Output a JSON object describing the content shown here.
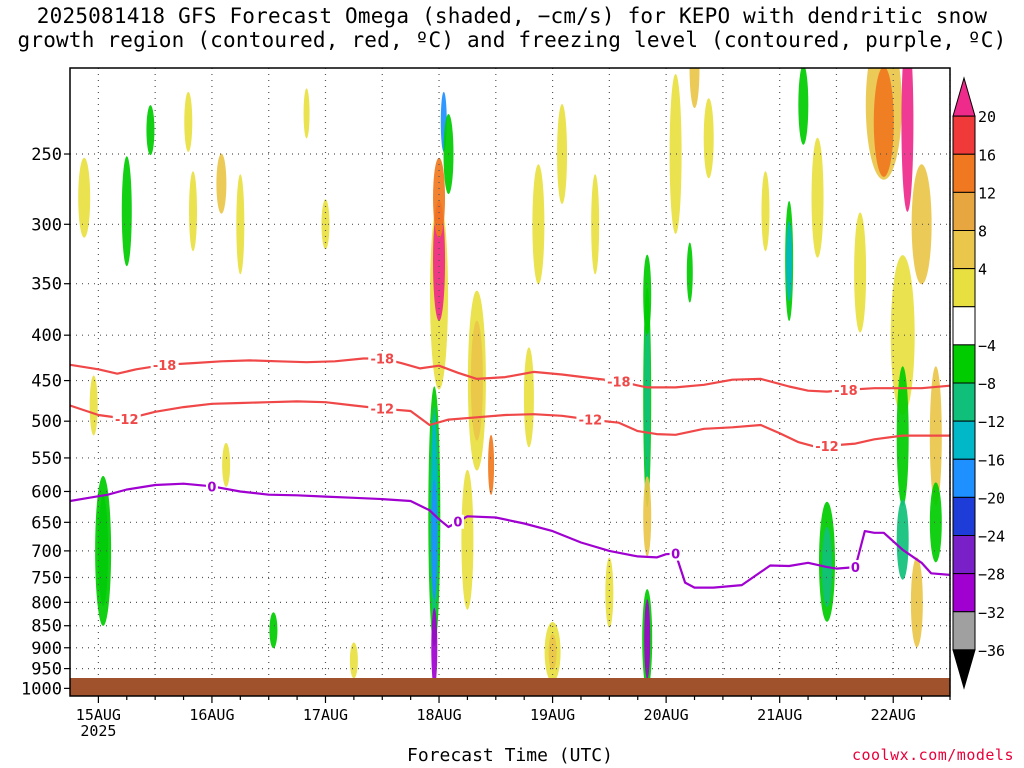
{
  "title_line1": "2025081418 GFS Forecast Omega (shaded, −cm/s) for KEPO with dendritic snow",
  "title_line2": "growth region (contoured, red, ºC) and freezing level (contoured, purple, ºC)",
  "xlabel": "Forecast Time (UTC)",
  "credit": "coolwx.com/models",
  "chart_data": {
    "type": "heatmap",
    "title": "2025081418 GFS Forecast Omega (shaded, −cm/s) for KEPO",
    "xlabel": "Forecast Time (UTC)",
    "ylabel": "",
    "x_ticks": [
      "15AUG\n2025",
      "16AUG",
      "17AUG",
      "18AUG",
      "19AUG",
      "20AUG",
      "21AUG",
      "22AUG"
    ],
    "x_tick_hours": [
      6,
      30,
      54,
      78,
      102,
      126,
      150,
      174
    ],
    "xlim_hours": [
      0,
      186
    ],
    "y_ticks": [
      250,
      300,
      350,
      400,
      450,
      500,
      550,
      600,
      650,
      700,
      750,
      800,
      850,
      900,
      950,
      1000
    ],
    "ylim_hPa": [
      200,
      1020
    ],
    "y_scale": "log (pressure)",
    "grid": true,
    "colorbar": {
      "labels": [
        "20",
        "16",
        "12",
        "8",
        "4",
        "−4",
        "−8",
        "−12",
        "−16",
        "−20",
        "−24",
        "−28",
        "−32",
        "−36"
      ],
      "colors": [
        "#ee2a8a",
        "#f03a3a",
        "#f07820",
        "#e8a640",
        "#eac64a",
        "#e8e040",
        "#ffffff",
        "#00cc00",
        "#10c07a",
        "#00b8c8",
        "#1e90ff",
        "#1e3cd8",
        "#7a20c8",
        "#a000d0",
        "#a0a0a0",
        "#000000"
      ]
    },
    "series": [
      {
        "name": "-18",
        "color": "#f04848",
        "x_hours": [
          0,
          6,
          10,
          14,
          20,
          26,
          32,
          38,
          44,
          50,
          56,
          62,
          66,
          70,
          74,
          78,
          82,
          86,
          92,
          98,
          104,
          110,
          116,
          122,
          128,
          134,
          140,
          146,
          152,
          156,
          160,
          164,
          170,
          176,
          180,
          186
        ],
        "y_hPa": [
          432,
          437,
          442,
          437,
          432,
          430,
          428,
          427,
          428,
          429,
          428,
          425,
          425,
          430,
          436,
          433,
          441,
          448,
          446,
          440,
          443,
          447,
          451,
          458,
          458,
          455,
          449,
          448,
          457,
          462,
          463,
          461,
          459,
          459,
          459,
          456
        ],
        "labels_at_hours": [
          20,
          66,
          116,
          164
        ]
      },
      {
        "name": "-12",
        "color": "#f04848",
        "x_hours": [
          0,
          6,
          12,
          18,
          24,
          30,
          36,
          42,
          48,
          54,
          60,
          66,
          72,
          76,
          80,
          86,
          92,
          98,
          104,
          110,
          116,
          120,
          124,
          128,
          134,
          140,
          146,
          150,
          154,
          158,
          162,
          166,
          170,
          176,
          186
        ],
        "y_hPa": [
          480,
          492,
          497,
          488,
          482,
          478,
          477,
          476,
          475,
          476,
          480,
          484,
          487,
          505,
          498,
          495,
          492,
          491,
          493,
          498,
          502,
          513,
          517,
          518,
          510,
          508,
          505,
          516,
          528,
          535,
          532,
          530,
          524,
          519,
          519
        ],
        "labels_at_hours": [
          12,
          66,
          110,
          160
        ]
      },
      {
        "name": "0",
        "color": "#a000d0",
        "x_hours": [
          0,
          4,
          8,
          12,
          18,
          24,
          30,
          36,
          42,
          48,
          54,
          60,
          66,
          72,
          76,
          78,
          80,
          84,
          90,
          96,
          102,
          108,
          114,
          120,
          124,
          126,
          128,
          130,
          132,
          136,
          142,
          148,
          152,
          156,
          160,
          162,
          166,
          168,
          170,
          172,
          176,
          180,
          182,
          186
        ],
        "y_hPa": [
          615,
          610,
          605,
          597,
          590,
          588,
          592,
          600,
          605,
          606,
          608,
          610,
          612,
          615,
          630,
          645,
          658,
          640,
          642,
          652,
          665,
          685,
          700,
          710,
          712,
          706,
          705,
          760,
          770,
          770,
          765,
          727,
          728,
          722,
          730,
          733,
          730,
          665,
          668,
          668,
          698,
          722,
          742,
          745
        ],
        "labels_at_hours": [
          30,
          82,
          128,
          166
        ]
      }
    ]
  }
}
